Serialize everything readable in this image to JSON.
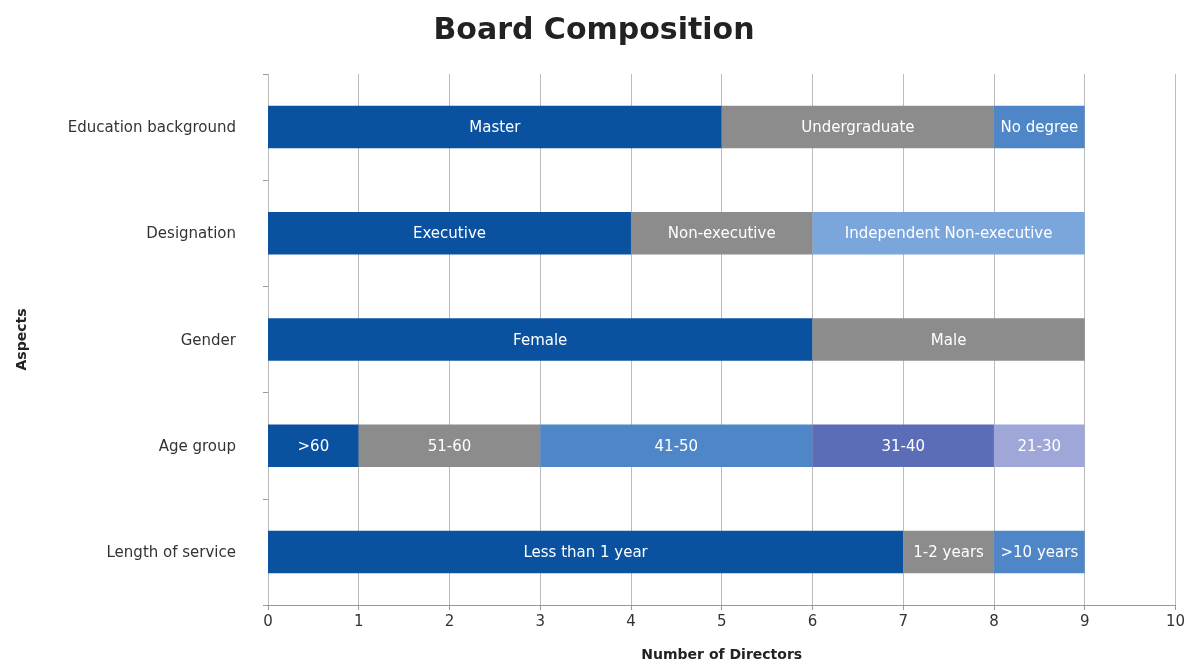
{
  "chart_data": {
    "type": "bar",
    "orientation": "horizontal",
    "stacked": true,
    "title": "Board Composition",
    "xlabel": "Number of Directors",
    "ylabel": "Aspects",
    "categories": [
      "Education background",
      "Designation",
      "Gender",
      "Age group",
      "Length of service"
    ],
    "series": [
      {
        "colors": [
          "#0a52a0",
          "#0a52a0",
          "#0a52a0",
          "#0a52a0",
          "#0a52a0"
        ],
        "values": [
          5,
          4,
          6,
          1,
          7
        ],
        "value_labels": [
          "Master",
          "Executive",
          "Female",
          ">60",
          "Less than 1 year"
        ]
      },
      {
        "colors": [
          "#8c8c8c",
          "#8c8c8c",
          "#8c8c8c",
          "#8c8c8c",
          "#8c8c8c"
        ],
        "values": [
          3,
          2,
          3,
          2,
          1
        ],
        "value_labels": [
          "Undergraduate",
          "Non-executive",
          "Male",
          "51-60",
          "1-2 years"
        ]
      },
      {
        "colors": [
          "#4f86c8",
          "#7aa6dc",
          "#4f86c8",
          "#4f86c8",
          "#4f86c8"
        ],
        "values": [
          1,
          3,
          null,
          3,
          1
        ],
        "value_labels": [
          "No degree",
          "Independent Non-executive",
          null,
          "41-50",
          ">10 years"
        ]
      },
      {
        "colors": [
          null,
          null,
          null,
          "#5a6db6",
          null
        ],
        "values": [
          null,
          null,
          null,
          2,
          null
        ],
        "value_labels": [
          null,
          null,
          null,
          "31-40",
          null
        ]
      },
      {
        "colors": [
          null,
          null,
          null,
          "#9fa6d8",
          null
        ],
        "values": [
          null,
          null,
          null,
          1,
          null
        ],
        "value_labels": [
          null,
          null,
          null,
          "21-30",
          null
        ]
      }
    ],
    "xlim": [
      0,
      10
    ],
    "xticks": [
      0,
      1,
      2,
      3,
      4,
      5,
      6,
      7,
      8,
      9,
      10
    ],
    "grid": "x"
  }
}
